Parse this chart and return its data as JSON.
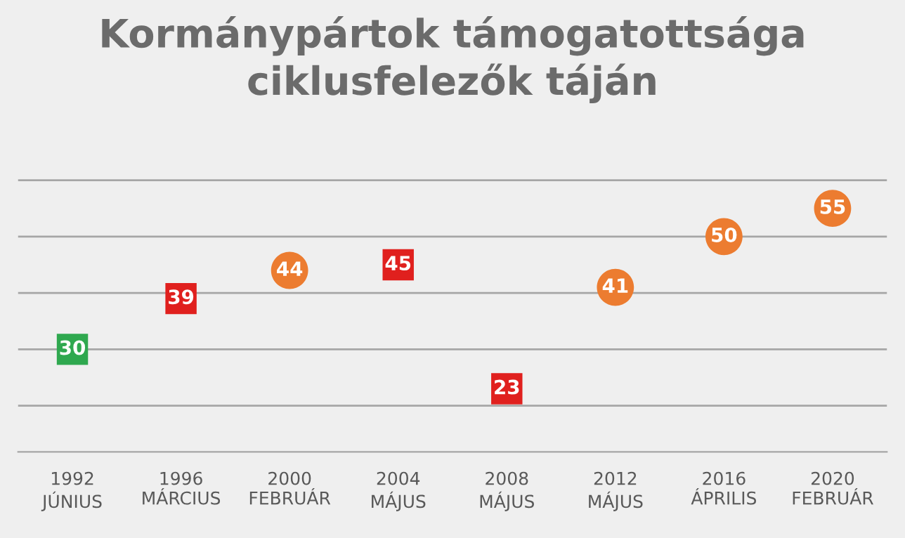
{
  "chart_data": {
    "type": "scatter",
    "title": "Kormánypártok támogatottsága\nciklusfelezők táján",
    "categories": [
      "1992\nJÚNIUS",
      "1996\nMÁRCIUS",
      "2000\nFEBRUÁR",
      "2004\nMÁJUS",
      "2008\nMÁJUS",
      "2012\nMÁJUS",
      "2016\nÁPRILIS",
      "2020\nFEBRUÁR"
    ],
    "series": [
      {
        "color": "#2fa84f",
        "marker": "square",
        "values": [
          30,
          null,
          null,
          null,
          null,
          null,
          null,
          null
        ]
      },
      {
        "color": "#e0201e",
        "marker": "square",
        "values": [
          null,
          39,
          null,
          45,
          23,
          null,
          null,
          null
        ]
      },
      {
        "color": "#ec7c30",
        "marker": "circle",
        "values": [
          null,
          null,
          44,
          null,
          null,
          41,
          50,
          55
        ]
      }
    ],
    "grid": "y",
    "tick_labels": "x",
    "data_labels": true,
    "legend": false
  }
}
